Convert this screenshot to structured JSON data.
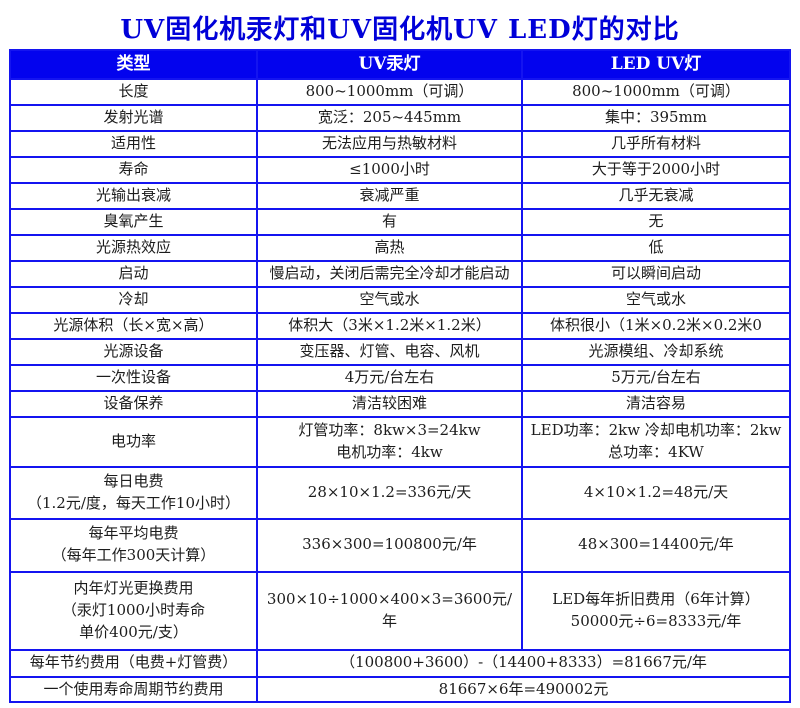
{
  "title": "UV固化机汞灯和UV固化机UV LED灯的对比",
  "colors": {
    "title_text": "#0000d8",
    "header_bg": "#0303ee",
    "header_text": "#ffffff",
    "table_border": "#1414f0",
    "body_text": "#1c1c1c"
  },
  "table": {
    "headers": [
      "类型",
      "UV汞灯",
      "LED UV灯"
    ],
    "rows": [
      {
        "label": "长度",
        "hg": "800~1000mm（可调）",
        "led": "800~1000mm（可调）"
      },
      {
        "label": "发射光谱",
        "hg": "宽泛：205~445mm",
        "led": "集中：395mm"
      },
      {
        "label": "适用性",
        "hg": "无法应用与热敏材料",
        "led": "几乎所有材料"
      },
      {
        "label": "寿命",
        "hg": "≤1000小时",
        "led": "大于等于2000小时"
      },
      {
        "label": "光输出衰减",
        "hg": "衰减严重",
        "led": "几乎无衰减"
      },
      {
        "label": "臭氧产生",
        "hg": "有",
        "led": "无"
      },
      {
        "label": "光源热效应",
        "hg": "高热",
        "led": "低"
      },
      {
        "label": "启动",
        "hg": "慢启动，关闭后需完全冷却才能启动",
        "led": "可以瞬间启动"
      },
      {
        "label": "冷却",
        "hg": "空气或水",
        "led": "空气或水"
      },
      {
        "label": "光源体积（长×宽×高）",
        "hg": "体积大（3米×1.2米×1.2米）",
        "led": "体积很小（1米×0.2米×0.2米0"
      },
      {
        "label": "光源设备",
        "hg": "变压器、灯管、电容、风机",
        "led": "光源模组、冷却系统"
      },
      {
        "label": "一次性设备",
        "hg": "4万元/台左右",
        "led": "5万元/台左右"
      },
      {
        "label": "设备保养",
        "hg": "清洁较困难",
        "led": "清洁容易"
      },
      {
        "label": "电功率",
        "hg": "灯管功率：8kw×3=24kw\n电机功率：4kw",
        "led": "LED功率：2kw 冷却电机功率：2kw\n总功率：4KW"
      },
      {
        "label": "每日电费\n（1.2元/度，每天工作10小时）",
        "hg": "28×10×1.2=336元/天",
        "led": "4×10×1.2=48元/天"
      },
      {
        "label": "每年平均电费\n（每年工作300天计算）",
        "hg": "336×300=100800元/年",
        "led": "48×300=14400元/年"
      },
      {
        "label": "内年灯光更换费用\n（汞灯1000小时寿命\n单价400元/支）",
        "hg": "300×10÷1000×400×3=3600元/年",
        "led": "LED每年折旧费用（6年计算）\n50000元÷6=8333元/年"
      },
      {
        "label": "每年节约费用（电费+灯管费）",
        "value": "（100800+3600）-（14400+8333）=81667元/年"
      },
      {
        "label": "一个使用寿命周期节约费用",
        "value": "81667×6年=490002元"
      }
    ]
  }
}
